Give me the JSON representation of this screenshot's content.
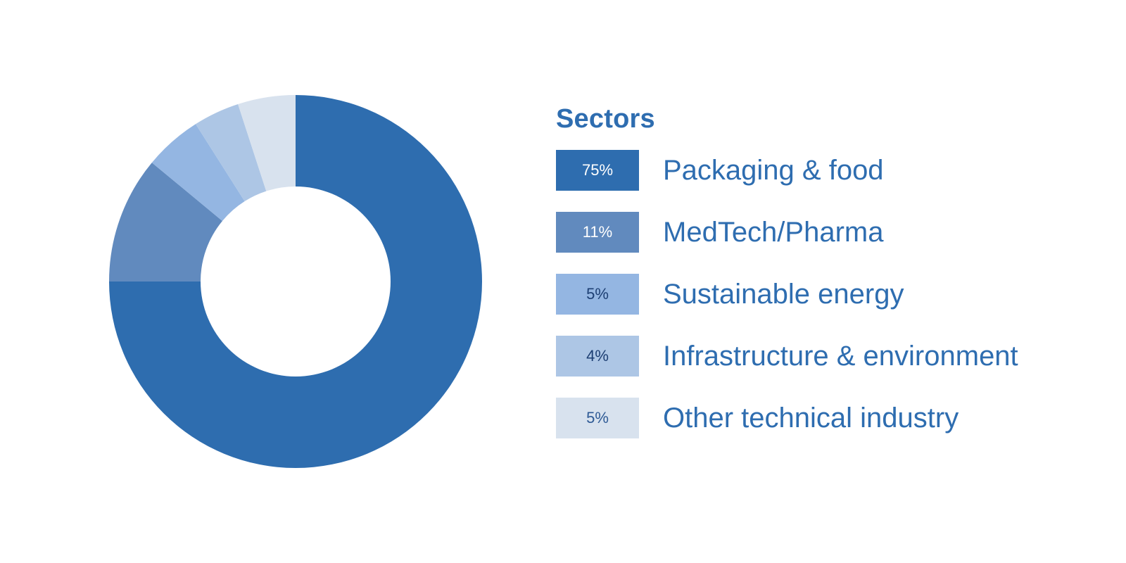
{
  "chart_data": {
    "type": "pie",
    "variant": "donut",
    "title": "Sectors",
    "start": "12 o'clock",
    "direction": "clockwise",
    "legend_position": "right",
    "series": [
      {
        "name": "Packaging & food",
        "value": 75,
        "label": "75%",
        "color": "#2e6daf",
        "text_color": "#ffffff"
      },
      {
        "name": "MedTech/Pharma",
        "value": 11,
        "label": "11%",
        "color": "#618abe",
        "text_color": "#ffffff"
      },
      {
        "name": "Sustainable energy",
        "value": 5,
        "label": "5%",
        "color": "#94b6e2",
        "text_color": "#1d3f73"
      },
      {
        "name": "Infrastructure & environment",
        "value": 4,
        "label": "4%",
        "color": "#adc6e5",
        "text_color": "#1d3f73"
      },
      {
        "name": "Other technical industry",
        "value": 5,
        "label": "5%",
        "color": "#d8e2ee",
        "text_color": "#2e5a95"
      }
    ]
  }
}
